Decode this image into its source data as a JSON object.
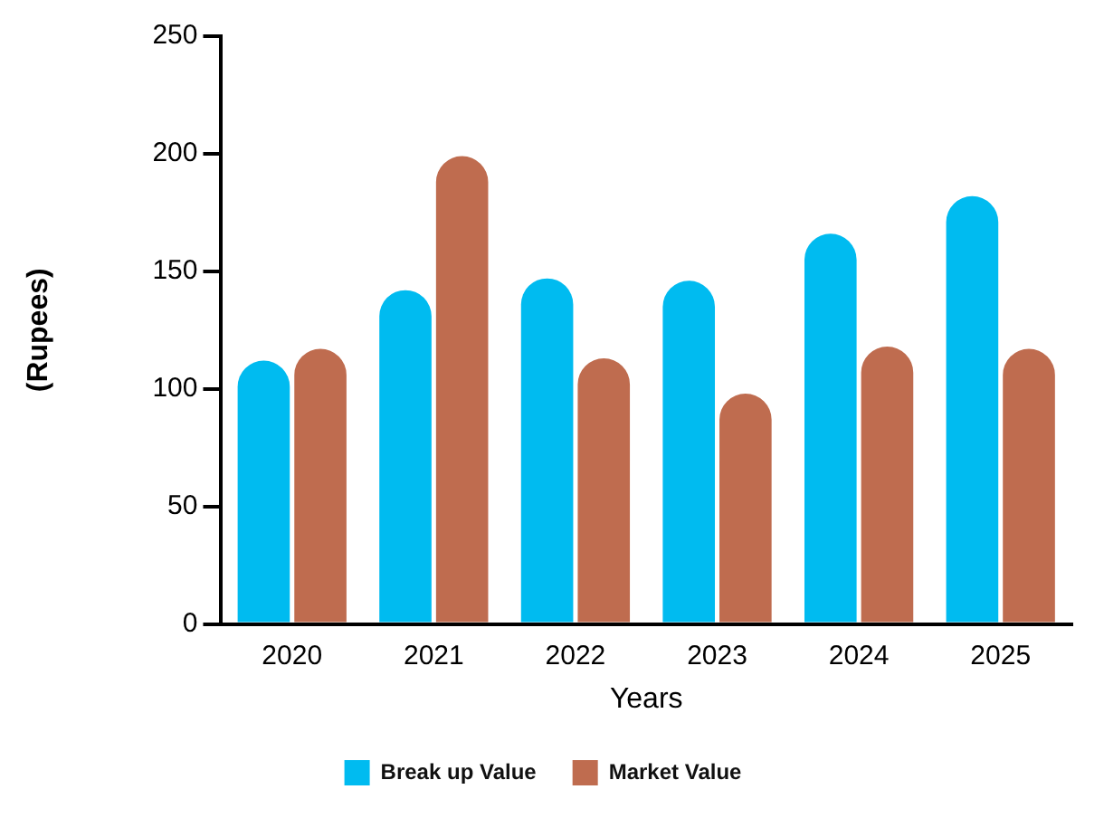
{
  "chart_data": {
    "type": "bar",
    "xlabel": "Years",
    "ylabel": "(Rupees)",
    "categories": [
      "2020",
      "2021",
      "2022",
      "2023",
      "2024",
      "2025"
    ],
    "series": [
      {
        "name": "Break up Value",
        "color": "#00bbf0",
        "values": [
          112,
          142,
          147,
          146,
          166,
          182
        ]
      },
      {
        "name": "Market Value",
        "color": "#bf6c4f",
        "values": [
          117,
          199,
          113,
          98,
          118,
          117
        ]
      }
    ],
    "ylim": [
      0,
      250
    ],
    "yticks": [
      0,
      50,
      100,
      150,
      200,
      250
    ],
    "grid": false,
    "legend": "bottom"
  }
}
